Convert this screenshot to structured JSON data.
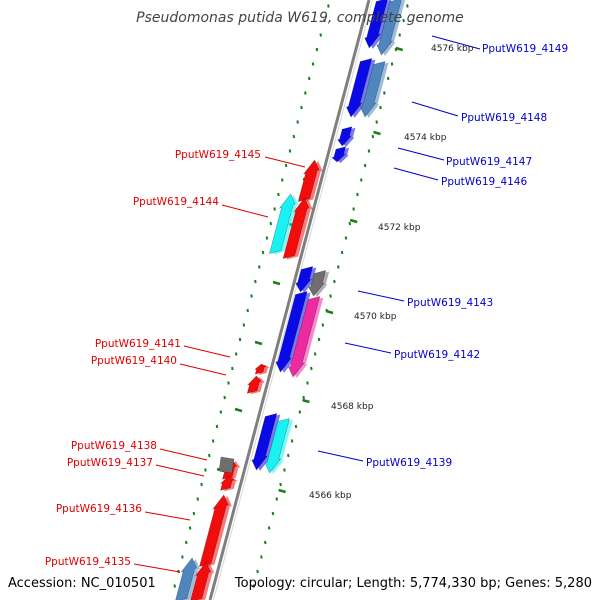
{
  "title": "Pseudomonas putida W619, complete genome",
  "accession": "Accession: NC_010501",
  "topology": "Topology: circular; Length: 5,774,330 bp; Genes: 5,280",
  "colors": {
    "backbone": "#7f7f7f",
    "tick": "#1a7f1a",
    "label_forward": "#0000cc",
    "label_reverse": "#dd0000",
    "blue": "#0a0ae6",
    "steelblue": "#4f86bd",
    "red": "#f20c0c",
    "cyan": "#19f2f2",
    "magenta": "#ee2aa0",
    "gray": "#6e6e6e"
  },
  "scale_labels": [
    "4576 kbp",
    "4574 kbp",
    "4572 kbp",
    "4570 kbp",
    "4568 kbp",
    "4566 kbp"
  ],
  "genes": [
    {
      "id": "g4149",
      "label": "PputW619_4149",
      "strand": "forward",
      "color": "steelblue"
    },
    {
      "id": "g4148",
      "label": "PputW619_4148",
      "strand": "forward",
      "color": "steelblue"
    },
    {
      "id": "g4147",
      "label": "PputW619_4147",
      "strand": "forward",
      "color": "blue"
    },
    {
      "id": "g4146",
      "label": "PputW619_4146",
      "strand": "forward",
      "color": "blue"
    },
    {
      "id": "g4145",
      "label": "PputW619_4145",
      "strand": "reverse",
      "color": "red"
    },
    {
      "id": "g4144",
      "label": "PputW619_4144",
      "strand": "reverse",
      "color": "red"
    },
    {
      "id": "g4143",
      "label": "PputW619_4143",
      "strand": "forward",
      "color": "gray"
    },
    {
      "id": "g4142",
      "label": "PputW619_4142",
      "strand": "forward",
      "color": "magenta"
    },
    {
      "id": "g4141",
      "label": "PputW619_4141",
      "strand": "reverse",
      "color": "red"
    },
    {
      "id": "g4140",
      "label": "PputW619_4140",
      "strand": "reverse",
      "color": "red"
    },
    {
      "id": "g4139",
      "label": "PputW619_4139",
      "strand": "forward",
      "color": "cyan"
    },
    {
      "id": "g4138",
      "label": "PputW619_4138",
      "strand": "reverse",
      "color": "gray"
    },
    {
      "id": "g4137",
      "label": "PputW619_4137",
      "strand": "reverse",
      "color": "red"
    },
    {
      "id": "g4136",
      "label": "PputW619_4136",
      "strand": "reverse",
      "color": "red"
    },
    {
      "id": "g4135",
      "label": "PputW619_4135",
      "strand": "reverse",
      "color": "red"
    }
  ]
}
